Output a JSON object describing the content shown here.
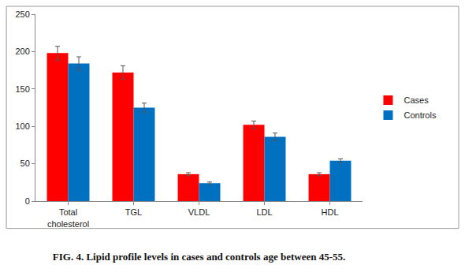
{
  "chart_data": {
    "type": "bar",
    "title": "FIG. 4. Lipid profile levels in cases and controls age between 45-55.",
    "categories": [
      "Total cholesterol",
      "TGL",
      "VLDL",
      "LDL",
      "HDL"
    ],
    "series": [
      {
        "name": "Cases",
        "color": "#ff0000",
        "values": [
          198,
          172,
          36,
          102,
          36
        ],
        "error": [
          9,
          9,
          2,
          5,
          2
        ]
      },
      {
        "name": "Controls",
        "color": "#0070c0",
        "values": [
          184,
          125,
          24,
          86,
          54
        ],
        "error": [
          9,
          6,
          1.5,
          5,
          2.5
        ]
      }
    ],
    "ylim": [
      0,
      250
    ],
    "yticks": [
      0,
      50,
      100,
      150,
      200,
      250
    ],
    "grid": false,
    "legend": "right"
  }
}
